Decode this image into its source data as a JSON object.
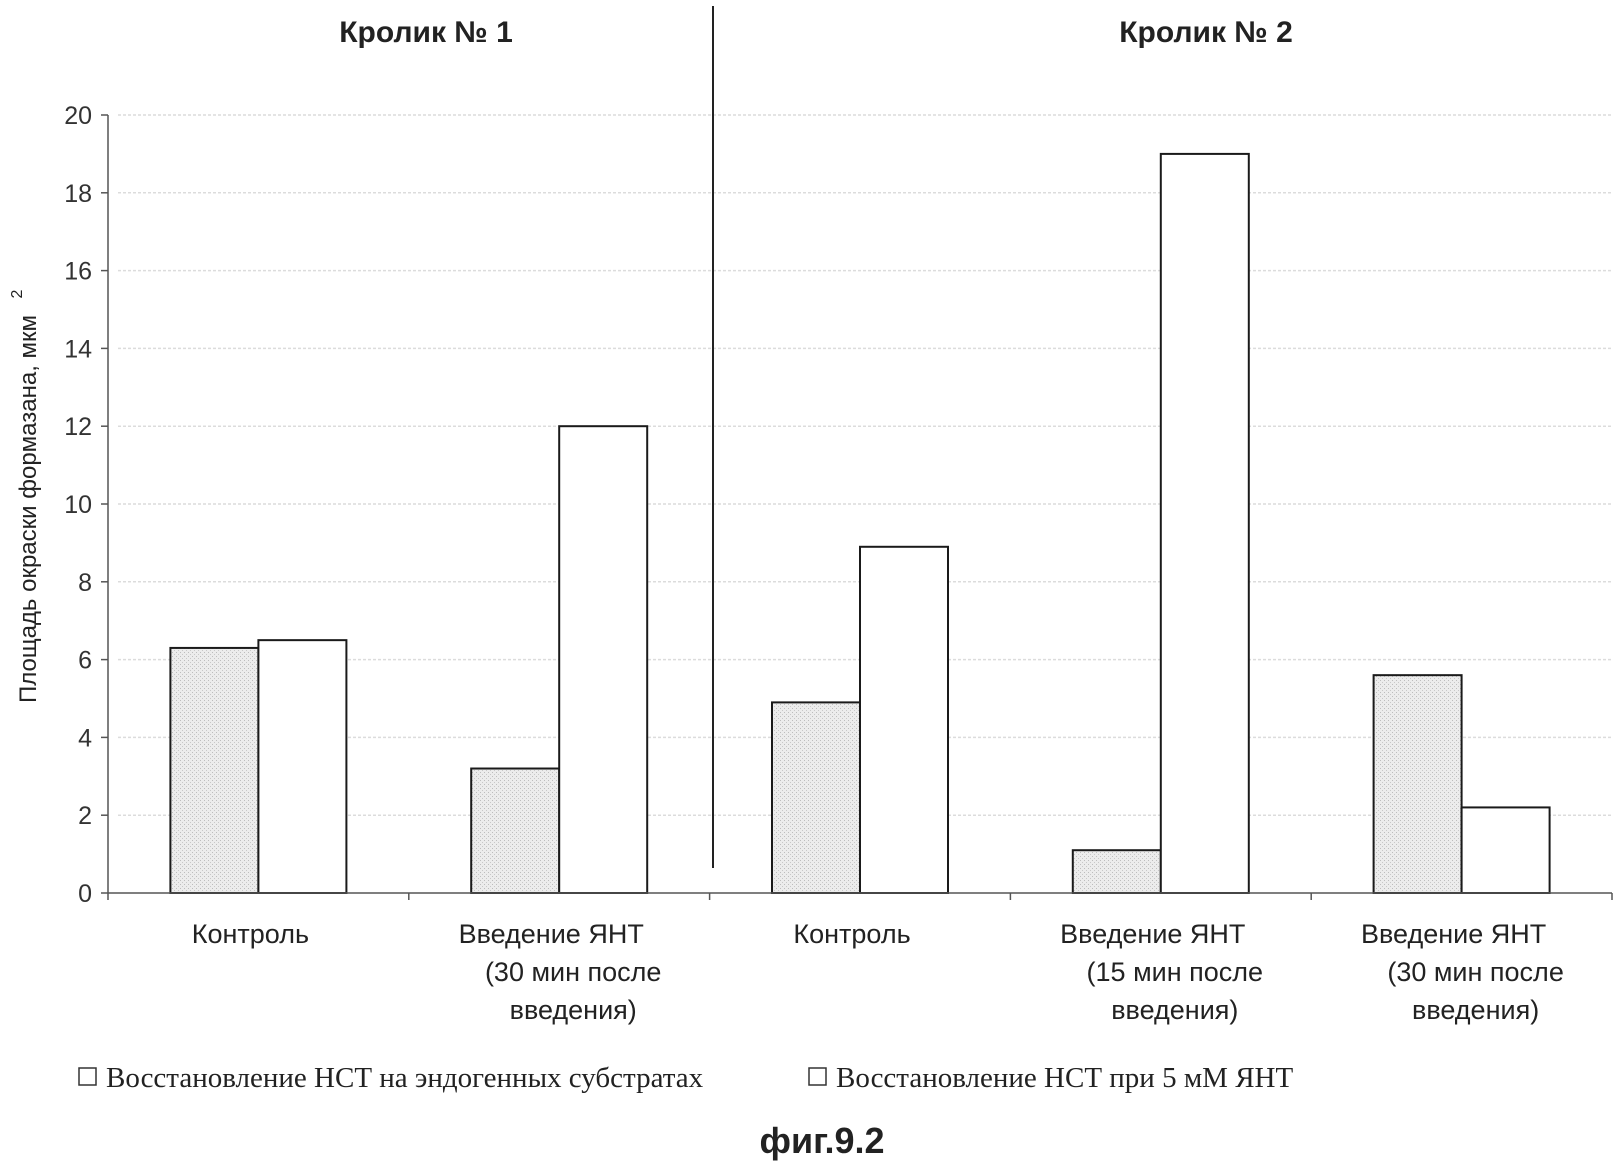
{
  "figure_caption": "фиг.9.2",
  "chart_data": {
    "type": "bar",
    "panel_titles": [
      "Кролик № 1",
      "Кролик № 2"
    ],
    "ylabel": "Площадь окраски формазана, мкм",
    "ylabel_superscript": "2",
    "ylim": [
      0,
      20
    ],
    "yticks": [
      "0",
      "2",
      "4",
      "6",
      "8",
      "10",
      "12",
      "14",
      "16",
      "18",
      "20"
    ],
    "categories": [
      [
        "Контроль"
      ],
      [
        "Введение ЯНТ",
        "(30 мин после",
        "введения)"
      ],
      [
        "Контроль"
      ],
      [
        "Введение ЯНТ",
        "(15 мин после",
        "введения)"
      ],
      [
        "Введение ЯНТ",
        "(30 мин после",
        "введения)"
      ]
    ],
    "series": [
      {
        "name": "Восстановление НСТ на эндогенных субстратах",
        "values": [
          6.3,
          3.2,
          4.9,
          1.1,
          5.6
        ],
        "color": "#e6e6e6"
      },
      {
        "name": "Восстановление НСТ при 5 мМ ЯНТ",
        "values": [
          6.5,
          12.0,
          8.9,
          19.0,
          2.2
        ],
        "color": "#ffffff"
      }
    ],
    "grid": true,
    "legend_position": "bottom"
  }
}
